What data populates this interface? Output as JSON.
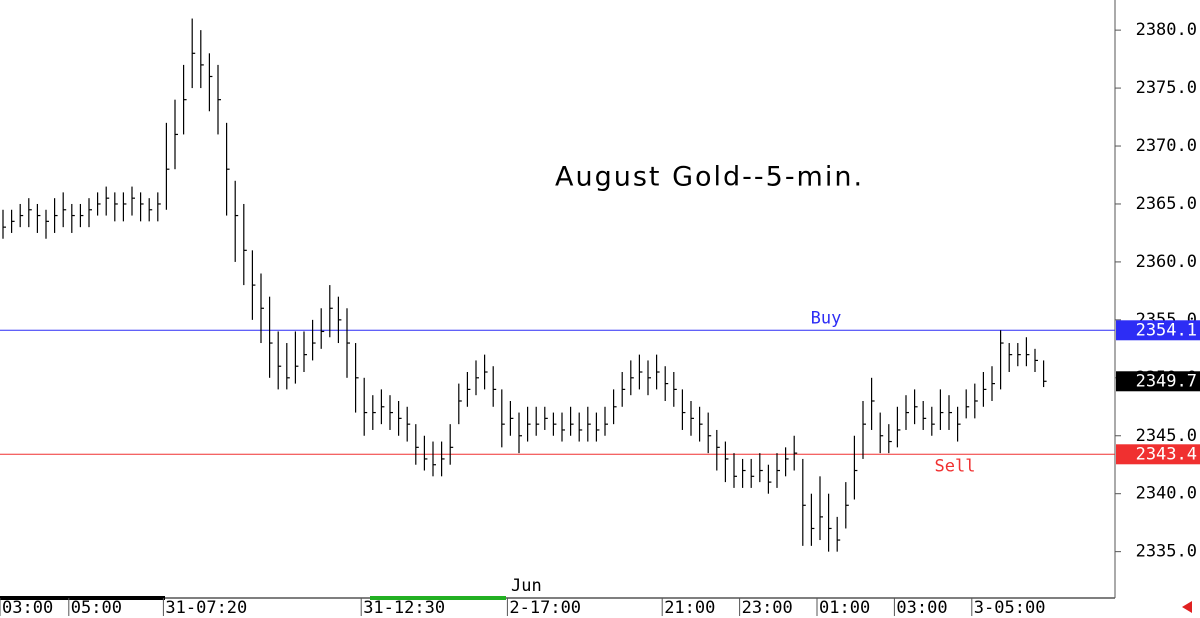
{
  "chart_data": {
    "type": "ohlc",
    "title": "August Gold--5-min.",
    "categories": [
      "03:00",
      null,
      null,
      null,
      null,
      null,
      null,
      null,
      "05:00",
      null,
      null,
      null,
      null,
      null,
      null,
      null,
      null,
      null,
      null,
      "31-07:20",
      null,
      null,
      null,
      null,
      null,
      null,
      null,
      null,
      null,
      null,
      null,
      null,
      null,
      null,
      null,
      null,
      null,
      null,
      null,
      null,
      null,
      null,
      "31-12:30",
      null,
      null,
      null,
      null,
      null,
      null,
      null,
      null,
      null,
      null,
      null,
      null,
      null,
      null,
      null,
      null,
      "2-17:00",
      null,
      null,
      null,
      null,
      null,
      null,
      null,
      null,
      null,
      null,
      null,
      null,
      null,
      null,
      null,
      null,
      null,
      "21:00",
      null,
      null,
      null,
      null,
      null,
      null,
      null,
      null,
      "23:00",
      null,
      null,
      null,
      null,
      null,
      null,
      null,
      null,
      "01:00",
      null,
      null,
      null,
      null,
      null,
      null,
      null,
      null,
      "03:00",
      null,
      null,
      null,
      null,
      null,
      null,
      null,
      null,
      "3-05:00",
      null,
      null,
      null,
      null,
      null,
      null,
      null,
      null
    ],
    "high": [
      2364.5,
      2364.5,
      2365,
      2365.5,
      2365,
      2364.5,
      2365.5,
      2366,
      2365,
      2365,
      2365.5,
      2366,
      2366.5,
      2366,
      2366,
      2366.5,
      2366,
      2365.5,
      2366,
      2372,
      2374,
      2377,
      2381,
      2380,
      2378,
      2377,
      2372,
      2367,
      2365,
      2361,
      2359,
      2357,
      2354,
      2353,
      2354,
      2354,
      2355,
      2356,
      2358,
      2357,
      2356,
      2353,
      2350,
      2348.5,
      2349,
      2348.5,
      2348,
      2347.5,
      2346,
      2345,
      2344.5,
      2344.5,
      2346,
      2349.5,
      2350.5,
      2351.5,
      2352,
      2351,
      2349,
      2348,
      2347,
      2347.5,
      2347.5,
      2347.5,
      2347,
      2347,
      2347.5,
      2347,
      2347.5,
      2347,
      2347.5,
      2349,
      2350.5,
      2351.5,
      2352,
      2351.5,
      2352,
      2351,
      2350.5,
      2349,
      2348,
      2347.5,
      2347,
      2345.5,
      2344.5,
      2343.5,
      2343,
      2343,
      2343.5,
      2342.5,
      2343.5,
      2344,
      2345,
      2343,
      2340,
      2341.5,
      2340,
      2338,
      2341,
      2345,
      2348,
      2350,
      2347,
      2346,
      2347.5,
      2348.5,
      2349,
      2348,
      2347.5,
      2349,
      2348.5,
      2347.5,
      2349,
      2349.5,
      2350.5,
      2351,
      2354.1,
      2353,
      2353,
      2353.5,
      2352.5,
      2351.5
    ],
    "low": [
      2362,
      2362.5,
      2363,
      2363,
      2362.5,
      2362,
      2362.5,
      2363,
      2362.5,
      2363,
      2363,
      2364,
      2364,
      2363.5,
      2363.5,
      2364,
      2363.5,
      2363.5,
      2363.5,
      2364.5,
      2368,
      2371,
      2375,
      2375,
      2373,
      2371,
      2364,
      2360,
      2358,
      2355,
      2353,
      2350,
      2349,
      2349,
      2349.5,
      2350.5,
      2351.5,
      2352.5,
      2353.5,
      2353,
      2350,
      2347,
      2345,
      2345.5,
      2346,
      2345.5,
      2345,
      2344.5,
      2342.5,
      2342,
      2341.5,
      2341.5,
      2342.5,
      2346,
      2347.5,
      2348.5,
      2349,
      2347.5,
      2344,
      2345,
      2343.5,
      2344.5,
      2345,
      2345.5,
      2345,
      2344.5,
      2345,
      2344.5,
      2344.5,
      2344.5,
      2345,
      2346,
      2347.5,
      2348.5,
      2349,
      2348.5,
      2349,
      2348,
      2347.5,
      2345.5,
      2345,
      2344.5,
      2343.5,
      2342,
      2341,
      2340.5,
      2340.5,
      2340.5,
      2341,
      2340,
      2340.5,
      2341.5,
      2342,
      2335.5,
      2335.5,
      2336,
      2335,
      2335,
      2337,
      2339.5,
      2343,
      2345.5,
      2343.5,
      2343.5,
      2344,
      2345.5,
      2346,
      2345.5,
      2345,
      2345.5,
      2345.5,
      2344.5,
      2346.5,
      2346.5,
      2347.5,
      2348,
      2349,
      2350.5,
      2351,
      2351,
      2350.5,
      2349.2
    ],
    "close": [
      2363,
      2363.5,
      2364,
      2364.5,
      2364,
      2363.5,
      2364,
      2364.5,
      2364,
      2364,
      2364.5,
      2365,
      2365.5,
      2365,
      2365,
      2365.5,
      2365,
      2364.5,
      2365,
      2368,
      2371,
      2374,
      2378,
      2377,
      2376,
      2374,
      2368,
      2364,
      2361,
      2358,
      2356,
      2353,
      2351,
      2350,
      2351,
      2352,
      2353,
      2354,
      2356,
      2355,
      2353,
      2350,
      2347,
      2347,
      2347.5,
      2347,
      2346.5,
      2346,
      2344,
      2343,
      2342.5,
      2343,
      2344,
      2348,
      2349,
      2350,
      2350.5,
      2349,
      2346,
      2346.5,
      2345,
      2346,
      2346,
      2346.5,
      2346,
      2345.5,
      2346,
      2345.5,
      2346,
      2345.5,
      2346,
      2347.5,
      2349,
      2350,
      2350.5,
      2350,
      2350.5,
      2349.5,
      2349,
      2347,
      2346.5,
      2346,
      2345,
      2344,
      2343,
      2341.5,
      2342,
      2341.5,
      2342,
      2341,
      2342,
      2343,
      2343.5,
      2339,
      2337,
      2338,
      2337,
      2336,
      2339,
      2342,
      2346,
      2348,
      2345,
      2344.5,
      2345.5,
      2347,
      2347.5,
      2346.5,
      2346,
      2347,
      2347,
      2346,
      2347.5,
      2348,
      2349,
      2349.5,
      2353,
      2352,
      2352,
      2352,
      2351.5,
      2349.7
    ],
    "color": "#000000",
    "ylim": [
      2331.0,
      2382.6
    ],
    "yticks": [
      {
        "value": 2335,
        "label": "2335.0"
      },
      {
        "value": 2340,
        "label": "2340.0"
      },
      {
        "value": 2345,
        "label": "2345.0"
      },
      {
        "value": 2350,
        "label": "2350.0"
      },
      {
        "value": 2355,
        "label": "2355.0"
      },
      {
        "value": 2360,
        "label": "2360.0"
      },
      {
        "value": 2365,
        "label": "2365.0"
      },
      {
        "value": 2370,
        "label": "2370.0"
      },
      {
        "value": 2375,
        "label": "2375.0"
      },
      {
        "value": 2380,
        "label": "2380.0"
      }
    ],
    "lines": [
      {
        "name": "Buy",
        "value": 2354.1,
        "color": "#2d2df5"
      },
      {
        "name": "Sell",
        "value": 2343.4,
        "color": "#f03030"
      }
    ],
    "last_price": 2349.7,
    "annotation": "Jun"
  }
}
